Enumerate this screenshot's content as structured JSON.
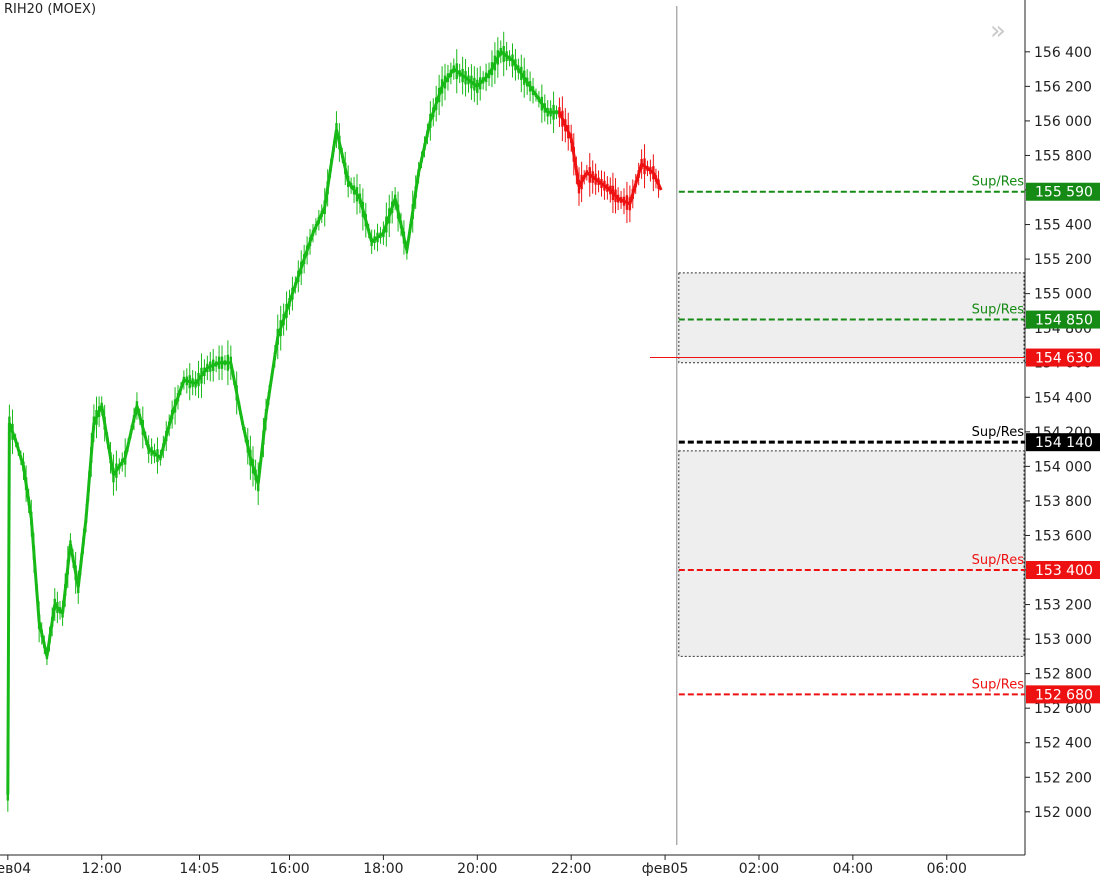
{
  "header": {
    "instrument": "RIH20 (MOEX)",
    "scroll_icon": "double-chevron-right-icon"
  },
  "chart_data": {
    "type": "candlestick",
    "title": "RIH20 (MOEX)",
    "ylim": [
      151750,
      156700
    ],
    "y_ticks": [
      152000,
      152200,
      152400,
      152600,
      152800,
      153000,
      153200,
      153400,
      153600,
      153800,
      154000,
      154200,
      154400,
      154600,
      154800,
      155000,
      155200,
      155400,
      155600,
      155800,
      156000,
      156200,
      156400
    ],
    "y_tick_labels": [
      "152 000",
      "152 200",
      "152 400",
      "152 600",
      "152 800",
      "153 000",
      "153 200",
      "153 400",
      "153 600",
      "153 800",
      "154 000",
      "154 200",
      "154 400",
      "154 600",
      "154 800",
      "155 000",
      "155 200",
      "155 400",
      "155 600",
      "155 800",
      "156 000",
      "156 200",
      "156 400"
    ],
    "x_range": [
      "04.02 09:50",
      "05.02 07:40"
    ],
    "x_ticks": [
      {
        "time": "04.02 10:00",
        "label": "фев04"
      },
      {
        "time": "04.02 12:00",
        "label": "12:00"
      },
      {
        "time": "04.02 14:05",
        "label": "14:05"
      },
      {
        "time": "04.02 16:00",
        "label": "16:00"
      },
      {
        "time": "04.02 18:00",
        "label": "18:00"
      },
      {
        "time": "04.02 20:00",
        "label": "20:00"
      },
      {
        "time": "04.02 22:00",
        "label": "22:00"
      },
      {
        "time": "05.02 00:00",
        "label": "фев05"
      },
      {
        "time": "05.02 02:00",
        "label": "02:00"
      },
      {
        "time": "05.02 04:00",
        "label": "04:00"
      },
      {
        "time": "05.02 06:00",
        "label": "06:00"
      }
    ],
    "current_time": "05.02 00:15",
    "up_color": "#17b917",
    "down_color": "#ee1111",
    "series": [
      {
        "name": "price",
        "color": "#17b917",
        "points": [
          {
            "t": "04.02 10:00",
            "p": 152100
          },
          {
            "t": "04.02 10:02",
            "p": 154250
          },
          {
            "t": "04.02 10:10",
            "p": 154150
          },
          {
            "t": "04.02 10:20",
            "p": 154000
          },
          {
            "t": "04.02 10:30",
            "p": 153700
          },
          {
            "t": "04.02 10:40",
            "p": 153100
          },
          {
            "t": "04.02 10:50",
            "p": 152900
          },
          {
            "t": "04.02 11:00",
            "p": 153200
          },
          {
            "t": "04.02 11:10",
            "p": 153150
          },
          {
            "t": "04.02 11:20",
            "p": 153550
          },
          {
            "t": "04.02 11:30",
            "p": 153300
          },
          {
            "t": "04.02 11:40",
            "p": 153700
          },
          {
            "t": "04.02 11:50",
            "p": 154250
          },
          {
            "t": "04.02 12:00",
            "p": 154350
          },
          {
            "t": "04.02 12:15",
            "p": 153950
          },
          {
            "t": "04.02 12:30",
            "p": 154050
          },
          {
            "t": "04.02 12:45",
            "p": 154350
          },
          {
            "t": "04.02 13:00",
            "p": 154100
          },
          {
            "t": "04.02 13:15",
            "p": 154050
          },
          {
            "t": "04.02 13:30",
            "p": 154300
          },
          {
            "t": "04.02 13:45",
            "p": 154500
          },
          {
            "t": "04.02 14:00",
            "p": 154480
          },
          {
            "t": "04.02 14:15",
            "p": 154570
          },
          {
            "t": "04.02 14:30",
            "p": 154600
          },
          {
            "t": "04.02 14:45",
            "p": 154600
          },
          {
            "t": "04.02 15:00",
            "p": 154250
          },
          {
            "t": "04.02 15:10",
            "p": 154050
          },
          {
            "t": "04.02 15:20",
            "p": 153900
          },
          {
            "t": "04.02 15:30",
            "p": 154300
          },
          {
            "t": "04.02 15:45",
            "p": 154750
          },
          {
            "t": "04.02 16:00",
            "p": 154950
          },
          {
            "t": "04.02 16:15",
            "p": 155150
          },
          {
            "t": "04.02 16:30",
            "p": 155350
          },
          {
            "t": "04.02 16:45",
            "p": 155500
          },
          {
            "t": "04.02 17:00",
            "p": 155950
          },
          {
            "t": "04.02 17:15",
            "p": 155650
          },
          {
            "t": "04.02 17:30",
            "p": 155550
          },
          {
            "t": "04.02 17:45",
            "p": 155300
          },
          {
            "t": "04.02 18:00",
            "p": 155350
          },
          {
            "t": "04.02 18:15",
            "p": 155550
          },
          {
            "t": "04.02 18:30",
            "p": 155250
          },
          {
            "t": "04.02 18:45",
            "p": 155700
          },
          {
            "t": "04.02 19:00",
            "p": 156000
          },
          {
            "t": "04.02 19:15",
            "p": 156200
          },
          {
            "t": "04.02 19:30",
            "p": 156300
          },
          {
            "t": "04.02 19:45",
            "p": 156250
          },
          {
            "t": "04.02 20:00",
            "p": 156200
          },
          {
            "t": "04.02 20:15",
            "p": 156270
          },
          {
            "t": "04.02 20:30",
            "p": 156400
          },
          {
            "t": "04.02 20:45",
            "p": 156350
          },
          {
            "t": "04.02 21:00",
            "p": 156250
          },
          {
            "t": "04.02 21:15",
            "p": 156150
          },
          {
            "t": "04.02 21:30",
            "p": 156050
          },
          {
            "t": "04.02 21:45",
            "p": 156050
          }
        ]
      },
      {
        "name": "price-down",
        "color": "#ee1111",
        "points": [
          {
            "t": "04.02 21:45",
            "p": 156050
          },
          {
            "t": "04.02 22:00",
            "p": 155900
          },
          {
            "t": "04.02 22:10",
            "p": 155620
          },
          {
            "t": "04.02 22:20",
            "p": 155700
          },
          {
            "t": "04.02 22:35",
            "p": 155650
          },
          {
            "t": "04.02 22:50",
            "p": 155600
          },
          {
            "t": "04.02 23:00",
            "p": 155550
          },
          {
            "t": "04.02 23:15",
            "p": 155520
          },
          {
            "t": "04.02 23:30",
            "p": 155750
          },
          {
            "t": "04.02 23:45",
            "p": 155700
          },
          {
            "t": "04.02 23:55",
            "p": 155600
          }
        ]
      }
    ],
    "levels": [
      {
        "label": "Sup/Res",
        "value": 155590,
        "value_label": "155 590",
        "color": "#158a15",
        "thick": false
      },
      {
        "label": "Sup/Res",
        "value": 154850,
        "value_label": "154 850",
        "color": "#158a15",
        "thick": false
      },
      {
        "label": "",
        "value": 154630,
        "value_label": "154 630",
        "color": "#ee1111",
        "thick": false,
        "solid": true
      },
      {
        "label": "Sup/Res",
        "value": 154140,
        "value_label": "154 140",
        "color": "#000000",
        "thick": true
      },
      {
        "label": "Sup/Res",
        "value": 153400,
        "value_label": "153 400",
        "color": "#ee1111",
        "thick": false
      },
      {
        "label": "Sup/Res",
        "value": 152680,
        "value_label": "152 680",
        "color": "#ee1111",
        "thick": false
      }
    ],
    "zones": [
      {
        "from": 154600,
        "to": 155120,
        "color": "#eeeeee"
      },
      {
        "from": 152900,
        "to": 154090,
        "color": "#eeeeee"
      }
    ],
    "grid": false
  }
}
